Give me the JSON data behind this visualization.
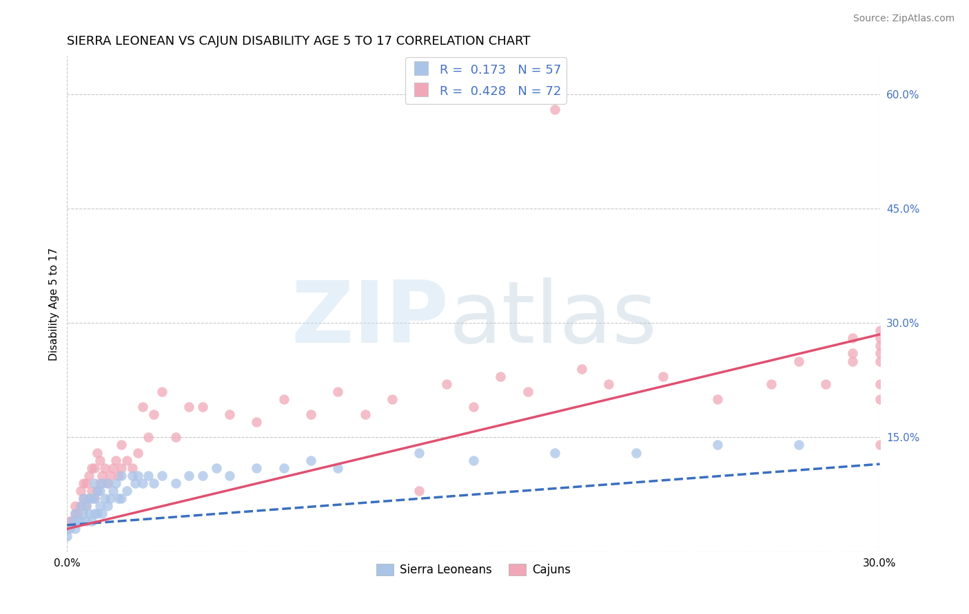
{
  "title": "SIERRA LEONEAN VS CAJUN DISABILITY AGE 5 TO 17 CORRELATION CHART",
  "source": "Source: ZipAtlas.com",
  "ylabel": "Disability Age 5 to 17",
  "xlim": [
    0.0,
    0.3
  ],
  "ylim": [
    0.0,
    0.65
  ],
  "ytick_labels_right": [
    "60.0%",
    "45.0%",
    "30.0%",
    "15.0%",
    ""
  ],
  "ytick_positions_right": [
    0.6,
    0.45,
    0.3,
    0.15,
    0.0
  ],
  "legend_label1": "Sierra Leoneans",
  "legend_label2": "Cajuns",
  "color_sierra": "#aac4e8",
  "color_cajun": "#f0a8b8",
  "color_line_sierra": "#3a6fbf",
  "color_line_cajun": "#e05070",
  "color_text_blue": "#4472C4",
  "background_color": "#ffffff",
  "grid_color": "#c8c8c8",
  "title_fontsize": 13,
  "sierra_x": [
    0.0,
    0.001,
    0.002,
    0.003,
    0.003,
    0.004,
    0.005,
    0.005,
    0.006,
    0.006,
    0.007,
    0.007,
    0.008,
    0.008,
    0.009,
    0.009,
    0.01,
    0.01,
    0.01,
    0.011,
    0.011,
    0.012,
    0.012,
    0.013,
    0.013,
    0.014,
    0.015,
    0.015,
    0.016,
    0.017,
    0.018,
    0.019,
    0.02,
    0.02,
    0.022,
    0.024,
    0.025,
    0.026,
    0.028,
    0.03,
    0.032,
    0.035,
    0.04,
    0.045,
    0.05,
    0.055,
    0.06,
    0.07,
    0.08,
    0.09,
    0.1,
    0.13,
    0.15,
    0.18,
    0.21,
    0.24,
    0.27
  ],
  "sierra_y": [
    0.02,
    0.03,
    0.04,
    0.03,
    0.05,
    0.04,
    0.04,
    0.06,
    0.05,
    0.07,
    0.04,
    0.06,
    0.05,
    0.07,
    0.04,
    0.07,
    0.05,
    0.07,
    0.09,
    0.05,
    0.08,
    0.06,
    0.08,
    0.05,
    0.09,
    0.07,
    0.06,
    0.09,
    0.07,
    0.08,
    0.09,
    0.07,
    0.07,
    0.1,
    0.08,
    0.1,
    0.09,
    0.1,
    0.09,
    0.1,
    0.09,
    0.1,
    0.09,
    0.1,
    0.1,
    0.11,
    0.1,
    0.11,
    0.11,
    0.12,
    0.11,
    0.13,
    0.12,
    0.13,
    0.13,
    0.14,
    0.14
  ],
  "cajun_x": [
    0.0,
    0.001,
    0.002,
    0.003,
    0.003,
    0.004,
    0.005,
    0.005,
    0.006,
    0.006,
    0.007,
    0.007,
    0.008,
    0.008,
    0.009,
    0.009,
    0.01,
    0.01,
    0.011,
    0.011,
    0.012,
    0.012,
    0.013,
    0.014,
    0.015,
    0.016,
    0.017,
    0.018,
    0.019,
    0.02,
    0.02,
    0.022,
    0.024,
    0.026,
    0.028,
    0.03,
    0.032,
    0.035,
    0.04,
    0.045,
    0.05,
    0.06,
    0.07,
    0.08,
    0.09,
    0.1,
    0.11,
    0.12,
    0.13,
    0.14,
    0.15,
    0.16,
    0.17,
    0.18,
    0.19,
    0.2,
    0.22,
    0.24,
    0.26,
    0.27,
    0.28,
    0.29,
    0.29,
    0.29,
    0.3,
    0.3,
    0.3,
    0.3,
    0.3,
    0.3,
    0.3,
    0.3
  ],
  "cajun_y": [
    0.03,
    0.04,
    0.04,
    0.05,
    0.06,
    0.05,
    0.06,
    0.08,
    0.07,
    0.09,
    0.06,
    0.09,
    0.07,
    0.1,
    0.08,
    0.11,
    0.07,
    0.11,
    0.08,
    0.13,
    0.09,
    0.12,
    0.1,
    0.11,
    0.09,
    0.1,
    0.11,
    0.12,
    0.1,
    0.11,
    0.14,
    0.12,
    0.11,
    0.13,
    0.19,
    0.15,
    0.18,
    0.21,
    0.15,
    0.19,
    0.19,
    0.18,
    0.17,
    0.2,
    0.18,
    0.21,
    0.18,
    0.2,
    0.08,
    0.22,
    0.19,
    0.23,
    0.21,
    0.58,
    0.24,
    0.22,
    0.23,
    0.2,
    0.22,
    0.25,
    0.22,
    0.26,
    0.28,
    0.25,
    0.26,
    0.2,
    0.22,
    0.25,
    0.14,
    0.28,
    0.27,
    0.29
  ],
  "cajun_line_x0": 0.0,
  "cajun_line_y0": 0.03,
  "cajun_line_x1": 0.3,
  "cajun_line_y1": 0.285,
  "sierra_line_x0": 0.0,
  "sierra_line_y0": 0.035,
  "sierra_line_x1": 0.3,
  "sierra_line_y1": 0.115
}
